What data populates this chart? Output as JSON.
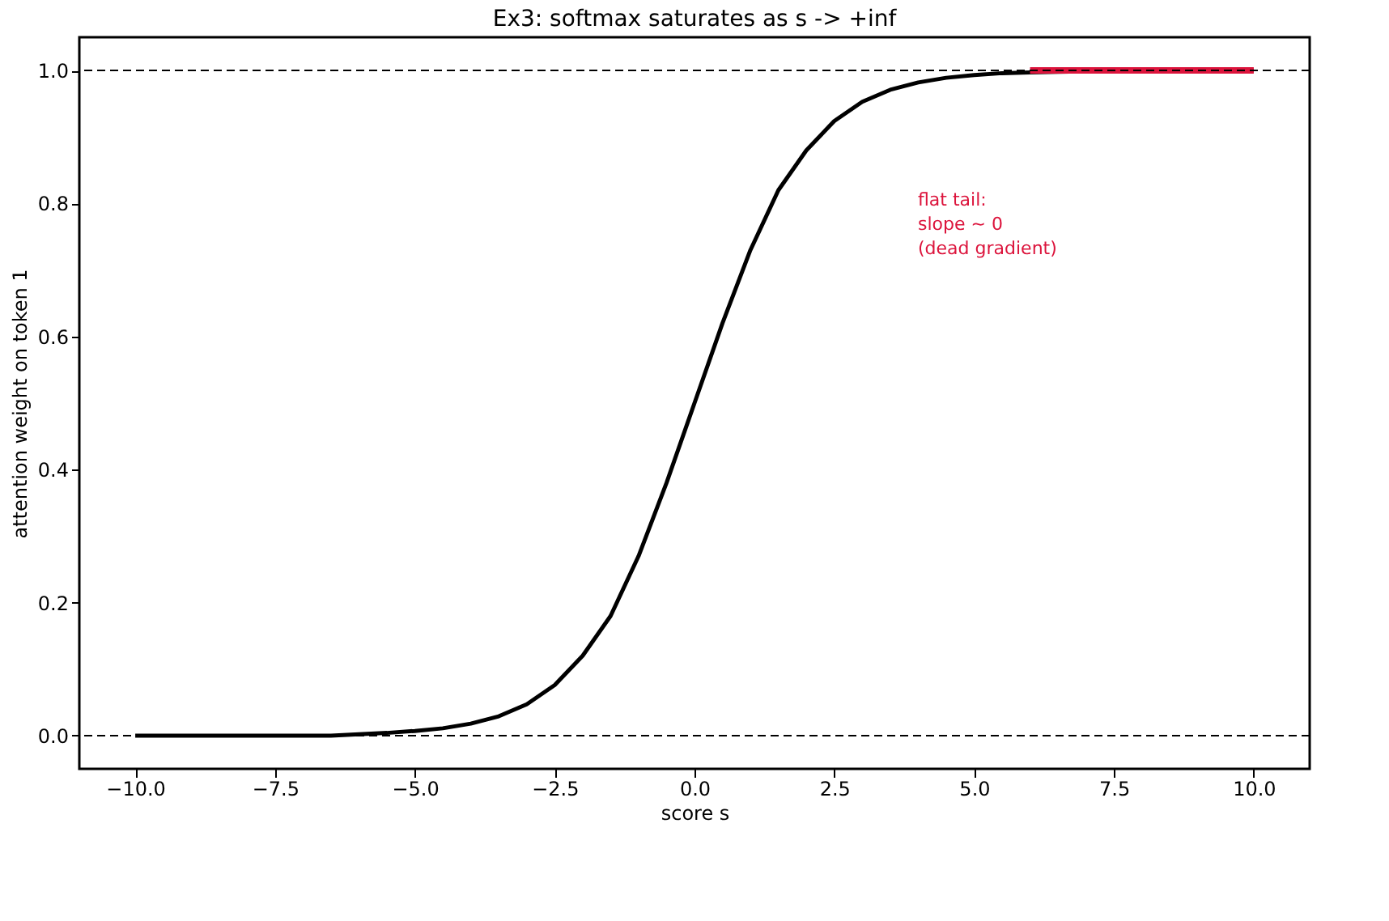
{
  "chart_data": {
    "type": "line",
    "title": "Ex3: softmax saturates as s -> +inf",
    "xlabel": "score s",
    "ylabel": "attention weight on token 1",
    "xlim": [
      -11,
      11
    ],
    "ylim": [
      -0.05,
      1.05
    ],
    "xticks": [
      {
        "value": -10,
        "label": "−10.0"
      },
      {
        "value": -7.5,
        "label": "−7.5"
      },
      {
        "value": -5,
        "label": "−5.0"
      },
      {
        "value": -2.5,
        "label": "−2.5"
      },
      {
        "value": 0,
        "label": "0.0"
      },
      {
        "value": 2.5,
        "label": "2.5"
      },
      {
        "value": 5,
        "label": "5.0"
      },
      {
        "value": 7.5,
        "label": "7.5"
      },
      {
        "value": 10,
        "label": "10.0"
      }
    ],
    "yticks": [
      {
        "value": 0,
        "label": "0.0"
      },
      {
        "value": 0.2,
        "label": "0.2"
      },
      {
        "value": 0.4,
        "label": "0.4"
      },
      {
        "value": 0.6,
        "label": "0.6"
      },
      {
        "value": 0.8,
        "label": "0.8"
      },
      {
        "value": 1,
        "label": "1.0"
      }
    ],
    "grid": false,
    "marker": "none",
    "line_style": "solid",
    "series": [
      {
        "color": "#000000",
        "x": [
          -10,
          -8,
          -6.5,
          -5.5,
          -5,
          -4.5,
          -4,
          -3.5,
          -3,
          -2.5,
          -2,
          -1.5,
          -1,
          -0.5,
          0,
          0.5,
          1,
          1.5,
          2,
          2.5,
          3,
          3.5,
          4,
          4.5,
          5,
          5.5,
          6.5,
          8,
          10
        ],
        "values": [
          0.0,
          0.0,
          0.0,
          0.004,
          0.007,
          0.011,
          0.018,
          0.029,
          0.047,
          0.076,
          0.12,
          0.18,
          0.27,
          0.38,
          0.5,
          0.62,
          0.73,
          0.82,
          0.88,
          0.924,
          0.953,
          0.971,
          0.982,
          0.989,
          0.993,
          0.996,
          0.998,
          1.0,
          1.0
        ]
      },
      {
        "color": "#dc143c",
        "x": [
          6,
          10
        ],
        "values": [
          1.0,
          1.0
        ]
      }
    ],
    "ref_lines": [
      {
        "axis": "y",
        "value": 0,
        "color": "#000000",
        "line_style": "dashed"
      },
      {
        "axis": "y",
        "value": 1,
        "color": "#000000",
        "line_style": "dashed"
      }
    ],
    "annotations": [
      "flat tail:\nslope ~ 0\n(dead gradient)"
    ]
  }
}
